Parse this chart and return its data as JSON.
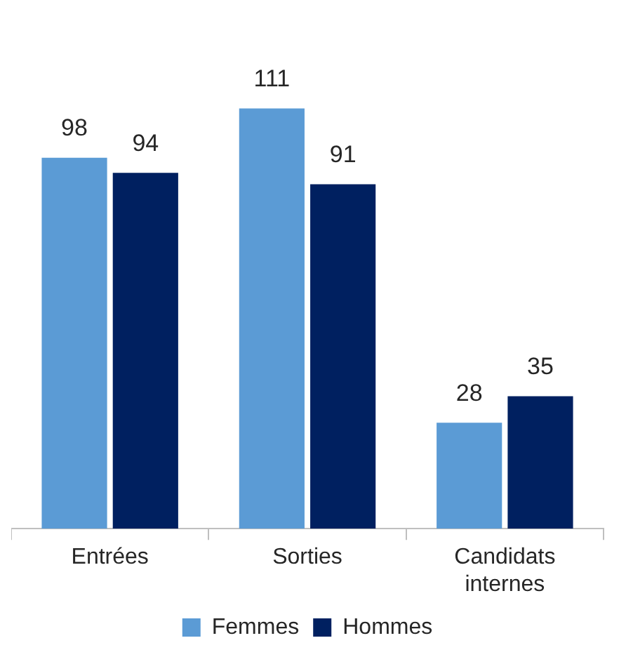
{
  "chart_data": {
    "type": "bar",
    "categories": [
      "Entrées",
      "Sorties",
      "Candidats internes"
    ],
    "series": [
      {
        "name": "Femmes",
        "color": "#5b9bd5",
        "values": [
          98,
          111,
          28
        ]
      },
      {
        "name": "Hommes",
        "color": "#002060",
        "values": [
          94,
          91,
          35
        ]
      }
    ],
    "data_labels": true,
    "legend": "bottom",
    "grid": false,
    "tick_labels": "x"
  }
}
